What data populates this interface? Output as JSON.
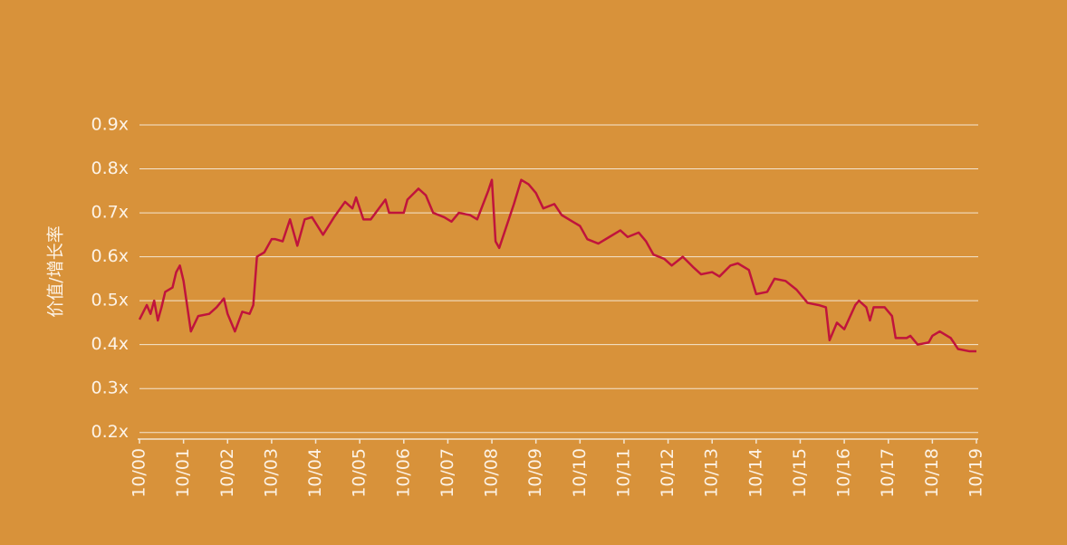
{
  "chart_data": {
    "type": "line",
    "y_label": "价值/增长率",
    "x": [
      "10/00",
      "12/00",
      "01/01",
      "02/01",
      "03/01",
      "04/01",
      "05/01",
      "07/01",
      "08/01",
      "09/01",
      "10/01",
      "12/01",
      "02/02",
      "05/02",
      "07/02",
      "09/02",
      "10/02",
      "12/02",
      "02/03",
      "04/03",
      "05/03",
      "06/03",
      "08/03",
      "10/03",
      "11/03",
      "01/04",
      "03/04",
      "05/04",
      "07/04",
      "09/04",
      "12/04",
      "03/05",
      "06/05",
      "08/05",
      "09/05",
      "11/05",
      "01/06",
      "05/06",
      "06/06",
      "10/06",
      "11/06",
      "02/07",
      "04/07",
      "06/07",
      "09/07",
      "11/07",
      "01/08",
      "04/08",
      "06/08",
      "09/08",
      "10/08",
      "11/08",
      "12/08",
      "02/09",
      "04/09",
      "06/09",
      "08/09",
      "10/09",
      "12/09",
      "03/10",
      "05/10",
      "08/10",
      "10/10",
      "12/10",
      "03/11",
      "06/11",
      "09/11",
      "11/11",
      "02/12",
      "04/12",
      "06/12",
      "09/12",
      "11/12",
      "02/13",
      "05/13",
      "07/13",
      "10/13",
      "12/13",
      "03/14",
      "05/14",
      "08/14",
      "10/14",
      "01/15",
      "03/15",
      "06/15",
      "09/15",
      "12/15",
      "03/16",
      "05/16",
      "06/16",
      "08/16",
      "10/16",
      "01/17",
      "02/17",
      "04/17",
      "05/17",
      "06/17",
      "09/17",
      "11/17",
      "12/17",
      "03/18",
      "04/18",
      "06/18",
      "09/18",
      "10/18",
      "12/18",
      "03/19",
      "05/19",
      "08/19",
      "10/19"
    ],
    "series": [
      {
        "color": "#c0143c",
        "values": [
          0.457,
          0.49,
          0.47,
          0.5,
          0.455,
          0.485,
          0.52,
          0.53,
          0.565,
          0.58,
          0.545,
          0.43,
          0.465,
          0.47,
          0.485,
          0.505,
          0.47,
          0.43,
          0.475,
          0.47,
          0.49,
          0.6,
          0.61,
          0.64,
          0.64,
          0.635,
          0.685,
          0.625,
          0.685,
          0.69,
          0.65,
          0.69,
          0.725,
          0.71,
          0.735,
          0.685,
          0.685,
          0.73,
          0.7,
          0.7,
          0.73,
          0.755,
          0.74,
          0.7,
          0.69,
          0.68,
          0.7,
          0.695,
          0.685,
          0.75,
          0.775,
          0.635,
          0.62,
          0.67,
          0.72,
          0.775,
          0.765,
          0.745,
          0.71,
          0.72,
          0.695,
          0.68,
          0.67,
          0.64,
          0.63,
          0.645,
          0.66,
          0.645,
          0.655,
          0.635,
          0.605,
          0.595,
          0.58,
          0.6,
          0.575,
          0.56,
          0.565,
          0.555,
          0.58,
          0.585,
          0.57,
          0.515,
          0.52,
          0.55,
          0.545,
          0.525,
          0.495,
          0.49,
          0.485,
          0.41,
          0.45,
          0.435,
          0.49,
          0.5,
          0.485,
          0.455,
          0.485,
          0.485,
          0.465,
          0.415,
          0.415,
          0.42,
          0.4,
          0.405,
          0.42,
          0.43,
          0.415,
          0.39,
          0.385,
          0.385
        ]
      }
    ],
    "xlim": [
      "10/00",
      "10/19"
    ],
    "xticks": [
      "10/00",
      "10/01",
      "10/02",
      "10/03",
      "10/04",
      "10/05",
      "10/06",
      "10/07",
      "10/08",
      "10/09",
      "10/10",
      "10/11",
      "10/12",
      "10/13",
      "10/14",
      "10/15",
      "10/16",
      "10/17",
      "10/18",
      "10/19"
    ],
    "ylim": [
      0.185,
      0.9
    ],
    "yticks": [
      {
        "value": 0.2,
        "label": "0.2x"
      },
      {
        "value": 0.3,
        "label": "0.3x"
      },
      {
        "value": 0.4,
        "label": "0.4x"
      },
      {
        "value": 0.5,
        "label": "0.5x"
      },
      {
        "value": 0.6,
        "label": "0.6x"
      },
      {
        "value": 0.7,
        "label": "0.7x"
      },
      {
        "value": 0.8,
        "label": "0.8x"
      },
      {
        "value": 0.9,
        "label": "0.9x"
      }
    ],
    "grid": true
  }
}
